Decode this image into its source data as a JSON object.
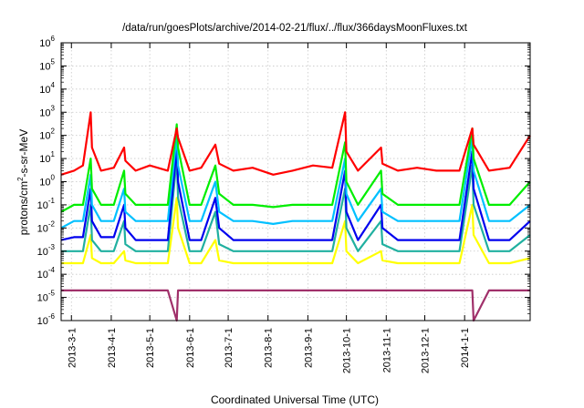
{
  "chart_data": {
    "type": "line",
    "title": "/data/run/goesPlots/archive/2014-02-21/flux/../flux/366daysMoonFluxes.txt",
    "xlabel": "Coordinated Universal Time (UTC)",
    "ylabel": "protons/cm²-s-sr-MeV",
    "ylabel_parts": {
      "pre": "protons/cm",
      "sup": "2",
      "post": "-s-sr-MeV"
    },
    "yscale": "log",
    "ylim": [
      1e-06,
      1000000.0
    ],
    "xlim": [
      "2013-02-21",
      "2014-02-21"
    ],
    "grid": true,
    "x_ticks": [
      "2013-03-01",
      "2013-04-01",
      "2013-05-01",
      "2013-06-01",
      "2013-07-01",
      "2013-08-01",
      "2013-09-01",
      "2013-10-01",
      "2013-11-01",
      "2013-12-01",
      "2014-01-01"
    ],
    "x_tick_labels": [
      "2013-3-1",
      "2013-4-1",
      "2013-5-1",
      "2013-6-1",
      "2013-7-1",
      "2013-8-1",
      "2013-9-1",
      "2013-10-1",
      "2013-11-1",
      "2013-12-1",
      "2014-1-1"
    ],
    "y_ticks": [
      {
        "value": 1e-06,
        "base": "10",
        "exp": "-6"
      },
      {
        "value": 1e-05,
        "base": "10",
        "exp": "-5"
      },
      {
        "value": 0.0001,
        "base": "10",
        "exp": "-4"
      },
      {
        "value": 0.001,
        "base": "10",
        "exp": "-3"
      },
      {
        "value": 0.01,
        "base": "10",
        "exp": "-2"
      },
      {
        "value": 0.1,
        "base": "10",
        "exp": "-1"
      },
      {
        "value": 1,
        "base": "10",
        "exp": "0"
      },
      {
        "value": 10,
        "base": "10",
        "exp": "1"
      },
      {
        "value": 100,
        "base": "10",
        "exp": "2"
      },
      {
        "value": 1000,
        "base": "10",
        "exp": "3"
      },
      {
        "value": 10000,
        "base": "10",
        "exp": "4"
      },
      {
        "value": 100000,
        "base": "10",
        "exp": "5"
      },
      {
        "value": 1000000,
        "base": "10",
        "exp": "6"
      }
    ],
    "x": [
      "2013-02-21",
      "2013-03-03",
      "2013-03-10",
      "2013-03-16",
      "2013-03-17",
      "2013-03-24",
      "2013-04-03",
      "2013-04-11",
      "2013-04-12",
      "2013-04-20",
      "2013-05-01",
      "2013-05-15",
      "2013-05-22",
      "2013-05-23",
      "2013-06-01",
      "2013-06-10",
      "2013-06-21",
      "2013-06-24",
      "2013-07-05",
      "2013-07-20",
      "2013-08-05",
      "2013-08-20",
      "2013-09-05",
      "2013-09-20",
      "2013-09-30",
      "2013-10-01",
      "2013-10-10",
      "2013-10-28",
      "2013-10-29",
      "2013-11-10",
      "2013-11-25",
      "2013-12-10",
      "2013-12-28",
      "2014-01-07",
      "2014-01-08",
      "2014-01-20",
      "2014-02-05",
      "2014-02-21"
    ],
    "series": [
      {
        "color": "#ff0000",
        "values": [
          2,
          3,
          5,
          1000,
          30,
          3,
          4,
          30,
          8,
          3,
          5,
          3,
          200,
          80,
          3,
          4,
          40,
          6,
          3,
          4,
          2,
          3,
          5,
          4,
          1000,
          20,
          3,
          30,
          6,
          3,
          4,
          3,
          3,
          200,
          40,
          3,
          4,
          100
        ]
      },
      {
        "color": "#00ee00",
        "values": [
          0.05,
          0.1,
          0.1,
          10,
          0.5,
          0.1,
          0.1,
          3,
          0.3,
          0.1,
          0.1,
          0.1,
          300,
          30,
          0.1,
          0.1,
          5,
          0.3,
          0.1,
          0.1,
          0.08,
          0.1,
          0.1,
          0.1,
          50,
          1,
          0.1,
          3,
          0.3,
          0.1,
          0.1,
          0.1,
          0.1,
          200,
          10,
          0.1,
          0.1,
          1
        ]
      },
      {
        "color": "#00c0ff",
        "values": [
          0.01,
          0.02,
          0.02,
          2,
          0.1,
          0.02,
          0.02,
          0.5,
          0.05,
          0.02,
          0.02,
          0.02,
          100,
          5,
          0.02,
          0.02,
          1,
          0.05,
          0.02,
          0.02,
          0.015,
          0.02,
          0.02,
          0.02,
          10,
          0.3,
          0.02,
          0.5,
          0.05,
          0.02,
          0.02,
          0.02,
          0.02,
          80,
          3,
          0.02,
          0.02,
          0.1
        ]
      },
      {
        "color": "#0000ee",
        "values": [
          0.003,
          0.004,
          0.004,
          0.5,
          0.02,
          0.004,
          0.004,
          0.1,
          0.01,
          0.003,
          0.003,
          0.003,
          30,
          1,
          0.003,
          0.003,
          0.2,
          0.01,
          0.003,
          0.003,
          0.003,
          0.003,
          0.003,
          0.003,
          3,
          0.05,
          0.003,
          0.1,
          0.01,
          0.003,
          0.003,
          0.003,
          0.003,
          20,
          0.5,
          0.003,
          0.003,
          0.02
        ]
      },
      {
        "color": "#20b0a0",
        "values": [
          0.001,
          0.001,
          0.001,
          0.1,
          0.003,
          0.001,
          0.001,
          0.02,
          0.002,
          0.001,
          0.001,
          0.001,
          10,
          0.2,
          0.001,
          0.001,
          0.05,
          0.002,
          0.001,
          0.001,
          0.001,
          0.001,
          0.001,
          0.001,
          0.5,
          0.01,
          0.001,
          0.02,
          0.002,
          0.001,
          0.001,
          0.001,
          0.001,
          5,
          0.1,
          0.001,
          0.001,
          0.005
        ]
      },
      {
        "color": "#ffff00",
        "values": [
          0.0003,
          0.0003,
          0.0003,
          0.005,
          0.0005,
          0.0003,
          0.0003,
          0.001,
          0.0004,
          0.0003,
          0.0003,
          0.0003,
          0.2,
          0.01,
          0.0003,
          0.0003,
          0.003,
          0.0004,
          0.0003,
          0.0003,
          0.0003,
          0.0003,
          0.0003,
          0.0003,
          0.02,
          0.001,
          0.0003,
          0.001,
          0.0004,
          0.0003,
          0.0003,
          0.0003,
          0.0003,
          0.1,
          0.005,
          0.0003,
          0.0003,
          0.0005
        ]
      },
      {
        "color": "#a0306a",
        "values": [
          2e-05,
          2e-05,
          2e-05,
          2e-05,
          2e-05,
          2e-05,
          2e-05,
          2e-05,
          2e-05,
          2e-05,
          2e-05,
          2e-05,
          1e-06,
          2e-05,
          2e-05,
          2e-05,
          2e-05,
          2e-05,
          2e-05,
          2e-05,
          2e-05,
          2e-05,
          2e-05,
          2e-05,
          2e-05,
          2e-05,
          2e-05,
          2e-05,
          2e-05,
          2e-05,
          2e-05,
          2e-05,
          2e-05,
          2e-05,
          1e-06,
          2e-05,
          2e-05,
          2e-05
        ]
      }
    ]
  }
}
